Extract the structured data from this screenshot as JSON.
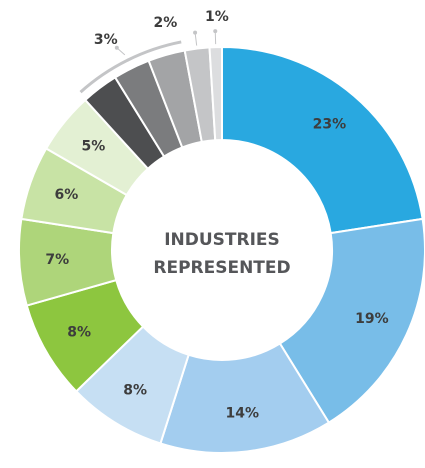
{
  "chart_data": {
    "type": "donut",
    "title": [
      "INDUSTRIES",
      "REPRESENTED"
    ],
    "values": [
      23,
      19,
      14,
      8,
      8,
      7,
      6,
      5,
      3,
      3,
      3,
      2,
      1
    ],
    "value_labels": [
      "23%",
      "19%",
      "14%",
      "8%",
      "8%",
      "7%",
      "6%",
      "5%",
      null,
      "3%",
      null,
      "2%",
      "1%"
    ],
    "colors": [
      "#29a8e0",
      "#78bde8",
      "#a3cdef",
      "#c6dff3",
      "#8dc63f",
      "#aed57a",
      "#c8e3a5",
      "#e3f0d3",
      "#4d4e50",
      "#7b7c7e",
      "#a3a4a6",
      "#c4c5c7",
      "#dcdddf"
    ]
  }
}
